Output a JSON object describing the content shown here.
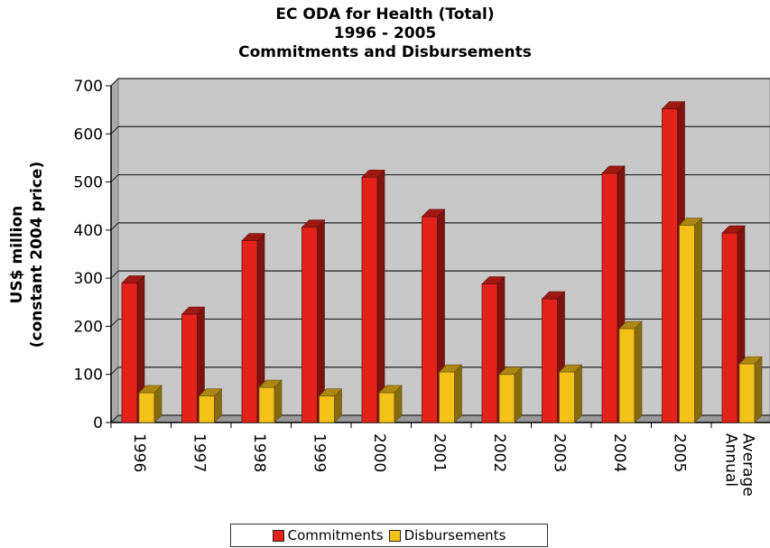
{
  "chart_data": {
    "type": "bar",
    "title_lines": [
      "EC ODA for Health (Total)",
      "1996 - 2005",
      "Commitments and Disbursements"
    ],
    "ylabel_lines": [
      "US$ million",
      "(constant 2004 price)"
    ],
    "xlabel": "",
    "categories": [
      "1996",
      "1997",
      "1998",
      "1999",
      "2000",
      "2001",
      "2002",
      "2003",
      "2004",
      "2005",
      "Annual Average"
    ],
    "category_label_lines": [
      [
        "1996"
      ],
      [
        "1997"
      ],
      [
        "1998"
      ],
      [
        "1999"
      ],
      [
        "2000"
      ],
      [
        "2001"
      ],
      [
        "2002"
      ],
      [
        "2003"
      ],
      [
        "2004"
      ],
      [
        "2005"
      ],
      [
        "Annual",
        "Average"
      ]
    ],
    "series": [
      {
        "name": "Commitments",
        "color": "#e3231b",
        "values": [
          290,
          225,
          378,
          406,
          510,
          428,
          288,
          257,
          518,
          652,
          394
        ]
      },
      {
        "name": "Disbursements",
        "color": "#f5c21b",
        "values": [
          62,
          55,
          73,
          55,
          62,
          105,
          100,
          105,
          195,
          410,
          122
        ]
      }
    ],
    "ylim": [
      0,
      700
    ],
    "yticks": [
      0,
      100,
      200,
      300,
      400,
      500,
      600,
      700
    ],
    "grid": true,
    "style": "3d",
    "plot_background": "#c8c8c8",
    "legend_position": "bottom-center"
  }
}
